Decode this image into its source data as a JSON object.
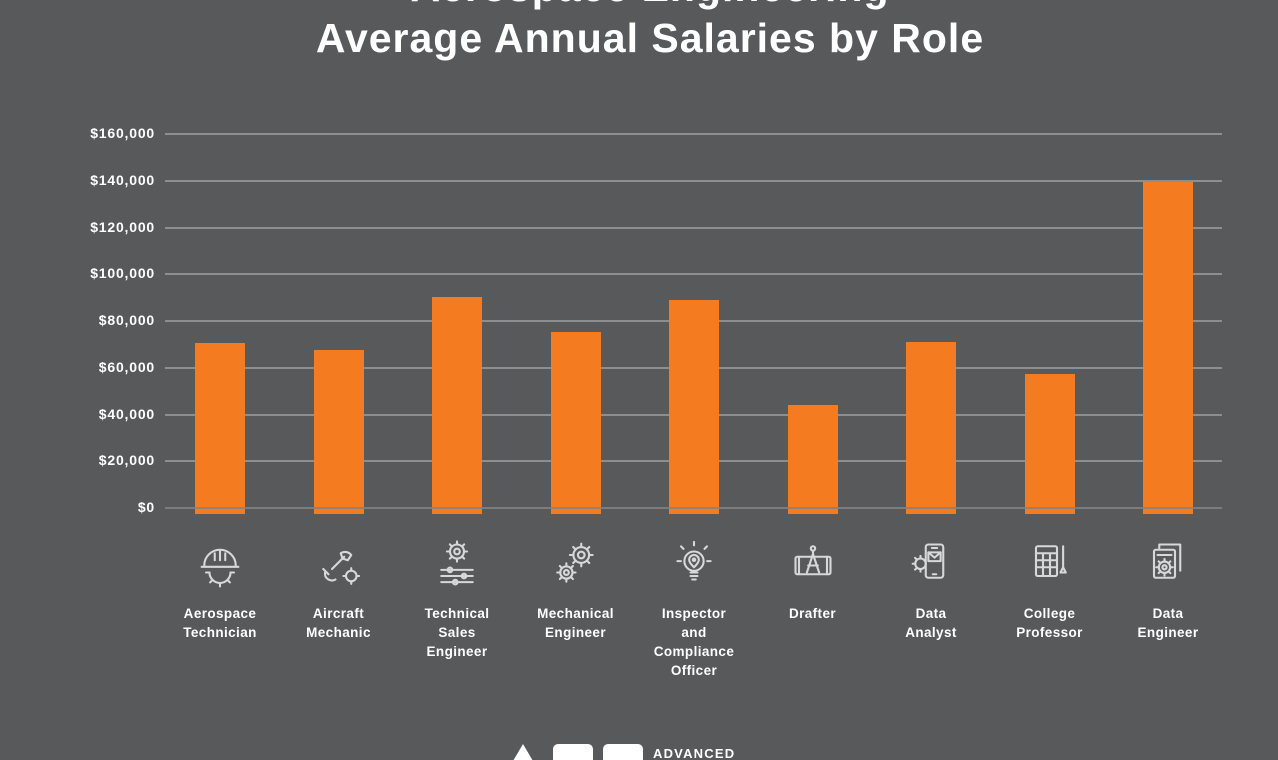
{
  "title": {
    "line1": "Aerospace Engineering",
    "line2": "Average Annual Salaries by Role"
  },
  "chart_data": {
    "type": "bar",
    "title": "Aerospace Engineering Average Annual Salaries by Role",
    "categories": [
      "Aerospace Technician",
      "Aircraft Mechanic",
      "Technical Sales Engineer",
      "Mechanical Engineer",
      "Inspector and Compliance Officer",
      "Drafter",
      "Data Analyst",
      "College Professor",
      "Data Engineer"
    ],
    "category_display_lines": [
      "Aerospace\nTechnician",
      "Aircraft\nMechanic",
      "Technical\nSales\nEngineer",
      "Mechanical\nEngineer",
      "Inspector\nand\nCompliance\nOfficer",
      "Drafter",
      "Data\nAnalyst",
      "College\nProfessor",
      "Data\nEngineer"
    ],
    "values": [
      70000,
      67000,
      90000,
      75000,
      88500,
      43500,
      70500,
      57000,
      139000
    ],
    "xlabel": "",
    "ylabel": "",
    "ylim": [
      0,
      160000
    ],
    "ytick_interval": 20000,
    "ytick_labels": [
      "$160,000",
      "$140,000",
      "$120,000",
      "$100,000",
      "$80,000",
      "$60,000",
      "$40,000",
      "$20,000",
      "$0"
    ],
    "grid": true,
    "legend": false,
    "bar_color": "#F47B20",
    "background_color": "#58595B",
    "text_color": "#FFFFFF",
    "icons": [
      "hard-hat-gear",
      "wrench-hand-gear",
      "gear-sliders",
      "gears",
      "lightbulb-pin",
      "blueprint-compass",
      "phone-gear",
      "calculator-pen",
      "documents-gear"
    ]
  },
  "footer": {
    "logo_text": "ADVANCED"
  }
}
